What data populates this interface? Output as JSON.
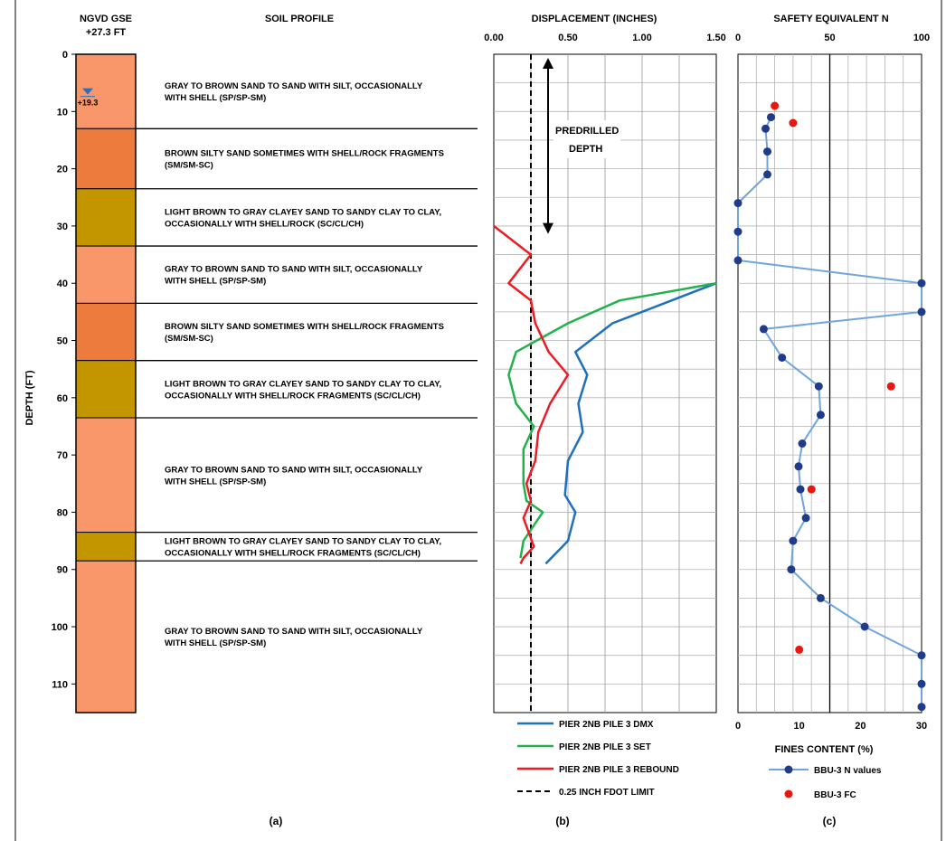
{
  "chart_data": [
    {
      "panel": "(a)",
      "type": "soil-profile",
      "title_line1": "NGVD GSE",
      "title_line2": "+27.3 FT",
      "header": "SOIL PROFILE",
      "ylabel": "DEPTH (FT)",
      "ylim": [
        0,
        115
      ],
      "yticks": [
        0,
        10,
        20,
        30,
        40,
        50,
        60,
        70,
        80,
        90,
        100,
        110
      ],
      "water_table": {
        "depth": 8,
        "label": "+19.3"
      },
      "layers": [
        {
          "top": 0,
          "bottom": 13,
          "color": "#f9976b",
          "line1": "GRAY TO BROWN SAND TO SAND WITH SILT, OCCASIONALLY",
          "line2": "WITH SHELL (SP/SP-SM)"
        },
        {
          "top": 13,
          "bottom": 23.5,
          "color": "#ec7b3d",
          "line1": "BROWN SILTY SAND SOMETIMES WITH SHELL/ROCK FRAGMENTS",
          "line2": "(SM/SM-SC)"
        },
        {
          "top": 23.5,
          "bottom": 33.5,
          "color": "#c39600",
          "line1": "LIGHT BROWN TO GRAY CLAYEY SAND TO SANDY CLAY TO CLAY,",
          "line2": "OCCASIONALLY WITH SHELL/ROCK (SC/CL/CH)"
        },
        {
          "top": 33.5,
          "bottom": 43.5,
          "color": "#f9976b",
          "line1": "GRAY TO BROWN SAND TO SAND WITH SILT, OCCASIONALLY",
          "line2": "WITH SHELL (SP/SP-SM)"
        },
        {
          "top": 43.5,
          "bottom": 53.5,
          "color": "#ec7b3d",
          "line1": "BROWN SILTY SAND SOMETIMES WITH SHELL/ROCK FRAGMENTS",
          "line2": "(SM/SM-SC)"
        },
        {
          "top": 53.5,
          "bottom": 63.5,
          "color": "#c39600",
          "line1": "LIGHT BROWN TO GRAY CLAYEY SAND TO SANDY CLAY TO CLAY,",
          "line2": "OCCASIONALLY WITH SHELL/ROCK FRAGMENTS (SC/CL/CH)"
        },
        {
          "top": 63.5,
          "bottom": 83.5,
          "color": "#f9976b",
          "line1": "GRAY TO BROWN SAND TO SAND WITH SILT, OCCASIONALLY",
          "line2": "WITH SHELL (SP/SP-SM)"
        },
        {
          "top": 83.5,
          "bottom": 88.5,
          "color": "#c39600",
          "line1": "LIGHT BROWN TO GRAY CLAYEY SAND TO SANDY CLAY TO CLAY,",
          "line2": "OCCASIONALLY WITH SHELL/ROCK FRAGMENTS (SC/CL/CH)"
        },
        {
          "top": 88.5,
          "bottom": 115,
          "color": "#f9976b",
          "line1": "GRAY TO BROWN SAND TO SAND WITH SILT, OCCASIONALLY",
          "line2": "WITH SHELL (SP/SP-SM)"
        }
      ]
    },
    {
      "panel": "(b)",
      "type": "line",
      "title": "DISPLACEMENT (INCHES)",
      "xlim": [
        0,
        1.5
      ],
      "xticks": [
        "0.00",
        "0.50",
        "1.00",
        "1.50"
      ],
      "ylim": [
        0,
        115
      ],
      "grid": true,
      "annotation": {
        "line1": "PREDRILLED",
        "line2": "DEPTH",
        "from_depth": 0,
        "to_depth": 32
      },
      "limit_line": {
        "name": "0.25 INCH FDOT LIMIT",
        "x": 0.25,
        "color": "#000000"
      },
      "series": [
        {
          "name": "PIER 2NB PILE 3 DMX",
          "color": "#1f6fbf",
          "x": [
            1.5,
            0.8,
            0.55,
            0.63,
            0.57,
            0.6,
            0.5,
            0.48,
            0.55,
            0.5,
            0.35
          ],
          "y": [
            40,
            47,
            52,
            56,
            61,
            66,
            71,
            77,
            80,
            85,
            89
          ]
        },
        {
          "name": "PIER 2NB PILE 3 SET",
          "color": "#22b14c",
          "x": [
            1.5,
            0.85,
            0.5,
            0.15,
            0.1,
            0.15,
            0.27,
            0.2,
            0.2,
            0.22,
            0.33,
            0.2,
            0.18
          ],
          "y": [
            40,
            43,
            47,
            52,
            56,
            61,
            65,
            69,
            75,
            78,
            80,
            85,
            88
          ]
        },
        {
          "name": "PIER 2NB PILE 3 REBOUND",
          "color": "#ed1c24",
          "x": [
            0,
            0.25,
            0.1,
            0.25,
            0.28,
            0.37,
            0.5,
            0.38,
            0.3,
            0.28,
            0.22,
            0.25,
            0.2,
            0.27,
            0.2,
            0.18
          ],
          "y": [
            30,
            35,
            40,
            43,
            47,
            52,
            56,
            61,
            66,
            71,
            75,
            78,
            81,
            86,
            88,
            89
          ]
        }
      ]
    },
    {
      "panel": "(c)",
      "type": "scatter",
      "title": "SAFETY EQUIVALENT N",
      "xlim_top": [
        0,
        100
      ],
      "xticks_top": [
        0,
        50,
        100
      ],
      "xlabel_bottom": "FINES CONTENT (%)",
      "xlim_bottom": [
        0,
        30
      ],
      "xticks_bottom": [
        0,
        10,
        20,
        30
      ],
      "ylim": [
        0,
        115
      ],
      "grid": true,
      "vline_at_N": 50,
      "series": [
        {
          "name": "BBU-3 N values",
          "color": "#1f3b8a",
          "line_color": "#70a4dc",
          "axis": "top",
          "x": [
            18,
            15,
            16,
            16,
            0,
            0,
            0,
            100,
            100,
            14,
            24,
            44,
            45,
            35,
            33,
            34,
            37,
            30,
            29,
            45,
            69,
            100,
            100,
            100
          ],
          "y": [
            11,
            13,
            17,
            21,
            26,
            31,
            36,
            40,
            45,
            48,
            53,
            58,
            63,
            68,
            72,
            76,
            81,
            85,
            90,
            95,
            100,
            105,
            110,
            114
          ]
        },
        {
          "name": "BBU-3 FC",
          "color": "#e8170f",
          "axis": "bottom",
          "x": [
            6,
            9,
            25,
            12,
            10
          ],
          "y": [
            9,
            12,
            58,
            76,
            104
          ]
        }
      ]
    }
  ]
}
